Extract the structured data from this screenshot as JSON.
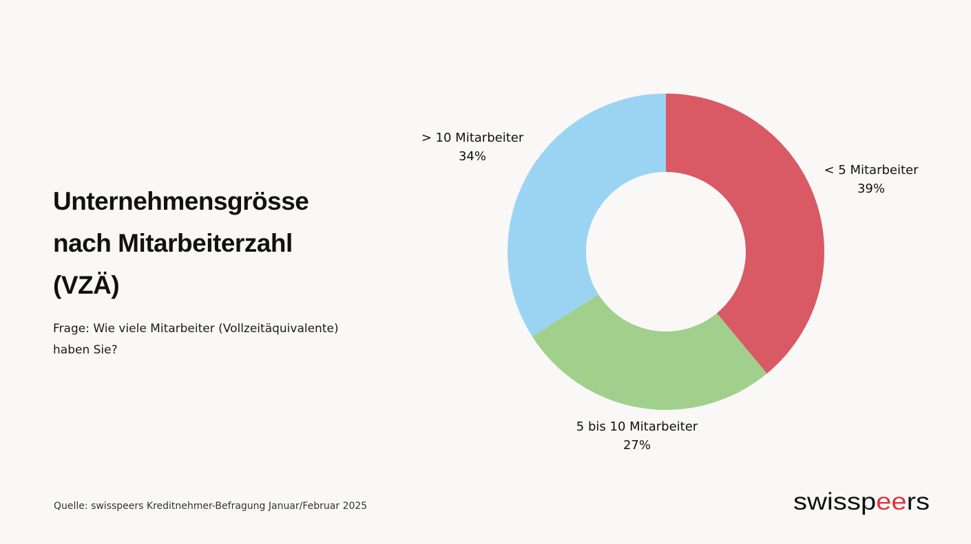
{
  "header": {
    "title_lines": [
      "Unternehmensgrösse",
      "nach Mitarbeiterzahl",
      "(VZÄ)"
    ],
    "question_lines": [
      "Frage: Wie viele Mitarbeiter (Vollzeitäquivalente)",
      "haben Sie?"
    ]
  },
  "footer": {
    "source": "Quelle: swisspeers Kreditnehmer-Befragung Januar/Februar 2025",
    "logo_text": "swisspeers",
    "logo_accent_color": "#e0353b"
  },
  "chart_data": {
    "type": "pie",
    "donut": true,
    "title": "Unternehmensgrösse nach Mitarbeiterzahl (VZÄ)",
    "slices": [
      {
        "label": "< 5 Mitarbeiter",
        "value": 39,
        "value_label": "39%",
        "color": "#d95a64"
      },
      {
        "label": "5 bis 10 Mitarbeiter",
        "value": 27,
        "value_label": "27%",
        "color": "#a1d08c"
      },
      {
        "label": "> 10 Mitarbeiter",
        "value": 34,
        "value_label": "34%",
        "color": "#9bd4f3"
      }
    ],
    "start_angle": "12 o'clock",
    "direction": "clockwise",
    "legend": "none"
  }
}
